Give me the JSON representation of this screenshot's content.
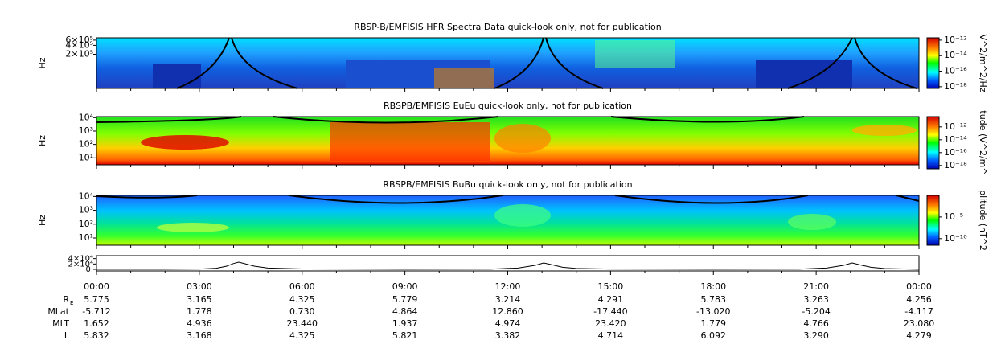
{
  "chart_data": {
    "type": "spectrogram",
    "panels": [
      {
        "title": "RBSP-B/EMFISIS  HFR Spectra Data quick-look only, not for publication",
        "ylabel": "Hz",
        "log": true,
        "ylim": [
          14000,
          720000
        ],
        "yticks": [
          {
            "value": 200000,
            "label": "2×10⁵"
          },
          {
            "value": 400000,
            "label": "4×10⁵"
          },
          {
            "value": 600000,
            "label": "6×10⁵"
          }
        ],
        "colorbar_label": "V^2/m^2/Hz",
        "clim": [
          6e-19,
          2e-12
        ],
        "cticks": [
          {
            "value": 1e-12,
            "label": "10⁻¹²"
          },
          {
            "value": 1e-14,
            "label": "10⁻¹⁴"
          },
          {
            "value": 1e-16,
            "label": "10⁻¹⁶"
          },
          {
            "value": 1e-18,
            "label": "10⁻¹⁸"
          }
        ]
      },
      {
        "title": "RBSPB/EMFISIS  EuEu quick-look only, not for publication",
        "ylabel": "Hz",
        "log": true,
        "ylim": [
          3,
          12000
        ],
        "yticks": [
          {
            "value": 10,
            "label": "10¹"
          },
          {
            "value": 100,
            "label": "10²"
          },
          {
            "value": 1000,
            "label": "10³"
          },
          {
            "value": 10000,
            "label": "10⁴"
          }
        ],
        "colorbar_label": "tude (V^2/m^",
        "clim": [
          3e-19,
          4e-11
        ],
        "cticks": [
          {
            "value": 1e-12,
            "label": "10⁻¹²"
          },
          {
            "value": 1e-14,
            "label": "10⁻¹⁴"
          },
          {
            "value": 1e-16,
            "label": "10⁻¹⁶"
          },
          {
            "value": 1e-18,
            "label": "10⁻¹⁸"
          }
        ]
      },
      {
        "title": "RBSPB/EMFISIS  BuBu quick-look only, not for publication",
        "ylabel": "Hz",
        "log": true,
        "ylim": [
          3,
          12000
        ],
        "yticks": [
          {
            "value": 10,
            "label": "10¹"
          },
          {
            "value": 100,
            "label": "10²"
          },
          {
            "value": 1000,
            "label": "10³"
          },
          {
            "value": 10000,
            "label": "10⁴"
          }
        ],
        "colorbar_label": "plitude (nT^2",
        "clim": [
          3e-12,
          1
        ],
        "cticks": [
          {
            "value": 1e-05,
            "label": "10⁻⁵"
          },
          {
            "value": 1e-10,
            "label": "10⁻¹⁰"
          }
        ]
      }
    ],
    "trace": {
      "type": "line",
      "ylim": [
        -6000,
        51000
      ],
      "yticks": [
        {
          "value": 0,
          "label": "0."
        },
        {
          "value": 20000,
          "label": "2×10⁴"
        },
        {
          "value": 40000,
          "label": "4×10⁴"
        }
      ],
      "xlim": [
        0,
        24
      ],
      "x": [
        0,
        2,
        3,
        3.5,
        3.8,
        4,
        4.15,
        4.3,
        4.6,
        5,
        6,
        9,
        11.5,
        12.3,
        12.8,
        13.05,
        13.3,
        13.6,
        14,
        15,
        18,
        20.5,
        21.3,
        21.8,
        22.05,
        22.3,
        22.6,
        23,
        24
      ],
      "values": [
        200,
        300,
        1000,
        4000,
        12000,
        22000,
        27000,
        22000,
        12000,
        5000,
        1500,
        300,
        800,
        5000,
        15000,
        24000,
        17000,
        8000,
        3500,
        1000,
        300,
        900,
        5000,
        15000,
        24000,
        16000,
        8000,
        3000,
        500
      ]
    },
    "time_labels": [
      "00:00",
      "03:00",
      "06:00",
      "09:00",
      "12:00",
      "15:00",
      "18:00",
      "21:00",
      "00:00"
    ],
    "ephemeris": [
      {
        "label": "R",
        "sub": "E",
        "values": [
          "5.775",
          "3.165",
          "4.325",
          "5.779",
          "3.214",
          "4.291",
          "5.783",
          "3.263",
          "4.256"
        ]
      },
      {
        "label": "MLat",
        "values": [
          "-5.712",
          "1.778",
          "0.730",
          "4.864",
          "12.860",
          "-17.440",
          "-13.020",
          "-5.204",
          "-4.117"
        ]
      },
      {
        "label": "MLT",
        "values": [
          "1.652",
          "4.936",
          "23.440",
          "1.937",
          "4.974",
          "23.420",
          "1.779",
          "4.766",
          "23.080"
        ]
      },
      {
        "label": "L",
        "values": [
          "5.832",
          "3.168",
          "4.325",
          "5.821",
          "3.382",
          "4.714",
          "6.092",
          "3.290",
          "4.279"
        ]
      }
    ]
  }
}
